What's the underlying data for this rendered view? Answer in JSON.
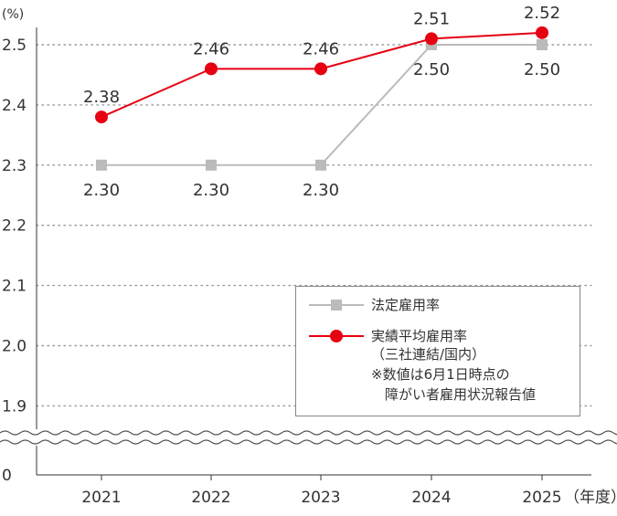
{
  "chart_data": {
    "type": "line",
    "title": "",
    "xlabel": "（年度）",
    "ylabel": "(%)",
    "categories": [
      "2021",
      "2022",
      "2023",
      "2024",
      "2025"
    ],
    "yticks": [
      "0",
      "1.9",
      "2.0",
      "2.1",
      "2.2",
      "2.3",
      "2.4",
      "2.5"
    ],
    "ylim": [
      1.9,
      2.5
    ],
    "axis_break": true,
    "grid": true,
    "legend_position": "bottom-right",
    "series": [
      {
        "name": "法定雇用率",
        "values": [
          2.3,
          2.3,
          2.3,
          2.5,
          2.5
        ],
        "labels": [
          "2.30",
          "2.30",
          "2.30",
          "2.50",
          "2.50"
        ],
        "color": "#bbbbbb",
        "marker": "square"
      },
      {
        "name": "実績平均雇用率",
        "values": [
          2.38,
          2.46,
          2.46,
          2.51,
          2.52
        ],
        "labels": [
          "2.38",
          "2.46",
          "2.46",
          "2.51",
          "2.52"
        ],
        "color": "#e60012",
        "marker": "circle"
      }
    ],
    "legend": {
      "items": [
        {
          "label": "法定雇用率"
        },
        {
          "label": "実績平均雇用率",
          "notes": [
            "（三社連結/国内）",
            "※数値は6月1日時点の",
            "　障がい者雇用状況報告値"
          ]
        }
      ]
    }
  }
}
